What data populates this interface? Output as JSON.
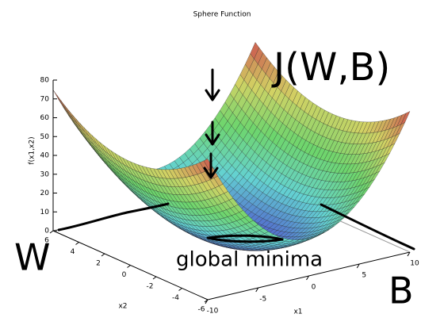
{
  "chart_data": {
    "type": "surface",
    "title": "Sphere Function",
    "zlabel": "f(x1,x2)",
    "xlabel": "x1",
    "ylabel": "x2",
    "xlim": [
      -10,
      10
    ],
    "xticks": [
      -10,
      -5,
      0,
      5,
      10
    ],
    "ylim": [
      -6,
      6
    ],
    "yticks": [
      -6,
      -4,
      -2,
      0,
      2,
      4,
      6
    ],
    "zlim": [
      0,
      80
    ],
    "zticks": [
      0,
      10,
      20,
      30,
      40,
      50,
      60,
      70,
      80
    ],
    "annotations": [
      "J(W,B)",
      "W",
      "B",
      "global minima"
    ]
  }
}
